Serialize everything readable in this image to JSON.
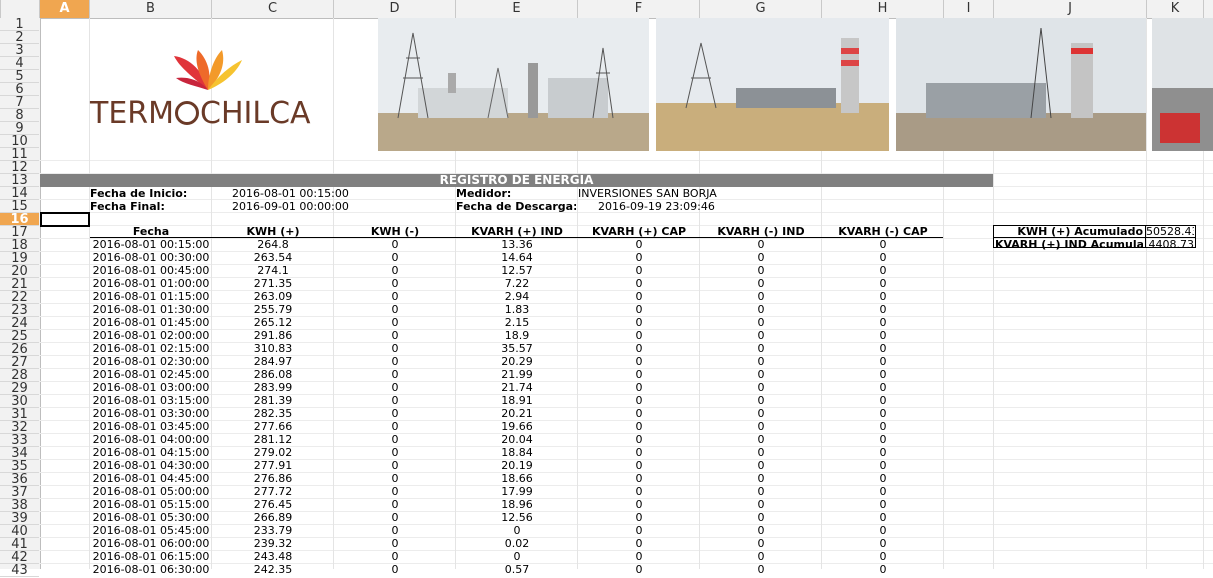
{
  "columns": [
    "A",
    "B",
    "C",
    "D",
    "E",
    "F",
    "G",
    "H",
    "I",
    "J",
    "K"
  ],
  "selected_column": "A",
  "rows": [
    "1",
    "2",
    "3",
    "4",
    "5",
    "6",
    "7",
    "8",
    "9",
    "10",
    "11",
    "12",
    "13",
    "14",
    "15",
    "16",
    "17",
    "18",
    "19",
    "20",
    "21",
    "22",
    "23",
    "24",
    "25",
    "26",
    "27",
    "28",
    "29",
    "30",
    "31",
    "32",
    "33",
    "34",
    "35",
    "36",
    "37",
    "38",
    "39",
    "40",
    "41",
    "42",
    "43"
  ],
  "selected_row": "16",
  "logo": {
    "text_left": "TERM",
    "text_right": "CHILCA"
  },
  "report": {
    "title": "REGISTRO DE ENERGIA",
    "fecha_inicio_label": "Fecha de Inicio:",
    "fecha_inicio_value": "2016-08-01 00:15:00",
    "fecha_final_label": "Fecha Final:",
    "fecha_final_value": "2016-09-01 00:00:00",
    "medidor_label": "Medidor:",
    "medidor_value": "INVERSIONES SAN BORJA",
    "fecha_descarga_label": "Fecha de Descarga:",
    "fecha_descarga_value": "2016-09-19 23:09:46"
  },
  "summary": {
    "kwh_label": "KWH (+) Acumulado",
    "kwh_value": "50528.43",
    "kvarh_label": "KVARH (+) IND Acumulado",
    "kvarh_value": "4408.73"
  },
  "table": {
    "headers": [
      "Fecha",
      "KWH (+)",
      "KWH (-)",
      "KVARH (+) IND",
      "KVARH (+) CAP",
      "KVARH (-) IND",
      "KVARH (-) CAP"
    ],
    "rows": [
      [
        "2016-08-01 00:15:00",
        "264.8",
        "0",
        "13.36",
        "0",
        "0",
        "0"
      ],
      [
        "2016-08-01 00:30:00",
        "263.54",
        "0",
        "14.64",
        "0",
        "0",
        "0"
      ],
      [
        "2016-08-01 00:45:00",
        "274.1",
        "0",
        "12.57",
        "0",
        "0",
        "0"
      ],
      [
        "2016-08-01 01:00:00",
        "271.35",
        "0",
        "7.22",
        "0",
        "0",
        "0"
      ],
      [
        "2016-08-01 01:15:00",
        "263.09",
        "0",
        "2.94",
        "0",
        "0",
        "0"
      ],
      [
        "2016-08-01 01:30:00",
        "255.79",
        "0",
        "1.83",
        "0",
        "0",
        "0"
      ],
      [
        "2016-08-01 01:45:00",
        "265.12",
        "0",
        "2.15",
        "0",
        "0",
        "0"
      ],
      [
        "2016-08-01 02:00:00",
        "291.86",
        "0",
        "18.9",
        "0",
        "0",
        "0"
      ],
      [
        "2016-08-01 02:15:00",
        "310.83",
        "0",
        "35.57",
        "0",
        "0",
        "0"
      ],
      [
        "2016-08-01 02:30:00",
        "284.97",
        "0",
        "20.29",
        "0",
        "0",
        "0"
      ],
      [
        "2016-08-01 02:45:00",
        "286.08",
        "0",
        "21.99",
        "0",
        "0",
        "0"
      ],
      [
        "2016-08-01 03:00:00",
        "283.99",
        "0",
        "21.74",
        "0",
        "0",
        "0"
      ],
      [
        "2016-08-01 03:15:00",
        "281.39",
        "0",
        "18.91",
        "0",
        "0",
        "0"
      ],
      [
        "2016-08-01 03:30:00",
        "282.35",
        "0",
        "20.21",
        "0",
        "0",
        "0"
      ],
      [
        "2016-08-01 03:45:00",
        "277.66",
        "0",
        "19.66",
        "0",
        "0",
        "0"
      ],
      [
        "2016-08-01 04:00:00",
        "281.12",
        "0",
        "20.04",
        "0",
        "0",
        "0"
      ],
      [
        "2016-08-01 04:15:00",
        "279.02",
        "0",
        "18.84",
        "0",
        "0",
        "0"
      ],
      [
        "2016-08-01 04:30:00",
        "277.91",
        "0",
        "20.19",
        "0",
        "0",
        "0"
      ],
      [
        "2016-08-01 04:45:00",
        "276.86",
        "0",
        "18.66",
        "0",
        "0",
        "0"
      ],
      [
        "2016-08-01 05:00:00",
        "277.72",
        "0",
        "17.99",
        "0",
        "0",
        "0"
      ],
      [
        "2016-08-01 05:15:00",
        "276.45",
        "0",
        "18.96",
        "0",
        "0",
        "0"
      ],
      [
        "2016-08-01 05:30:00",
        "266.89",
        "0",
        "12.56",
        "0",
        "0",
        "0"
      ],
      [
        "2016-08-01 05:45:00",
        "233.79",
        "0",
        "0",
        "0",
        "0",
        "0"
      ],
      [
        "2016-08-01 06:00:00",
        "239.32",
        "0",
        "0.02",
        "0",
        "0",
        "0"
      ],
      [
        "2016-08-01 06:15:00",
        "243.48",
        "0",
        "0",
        "0",
        "0",
        "0"
      ],
      [
        "2016-08-01 06:30:00",
        "242.35",
        "0",
        "0.57",
        "0",
        "0",
        "0"
      ]
    ]
  }
}
